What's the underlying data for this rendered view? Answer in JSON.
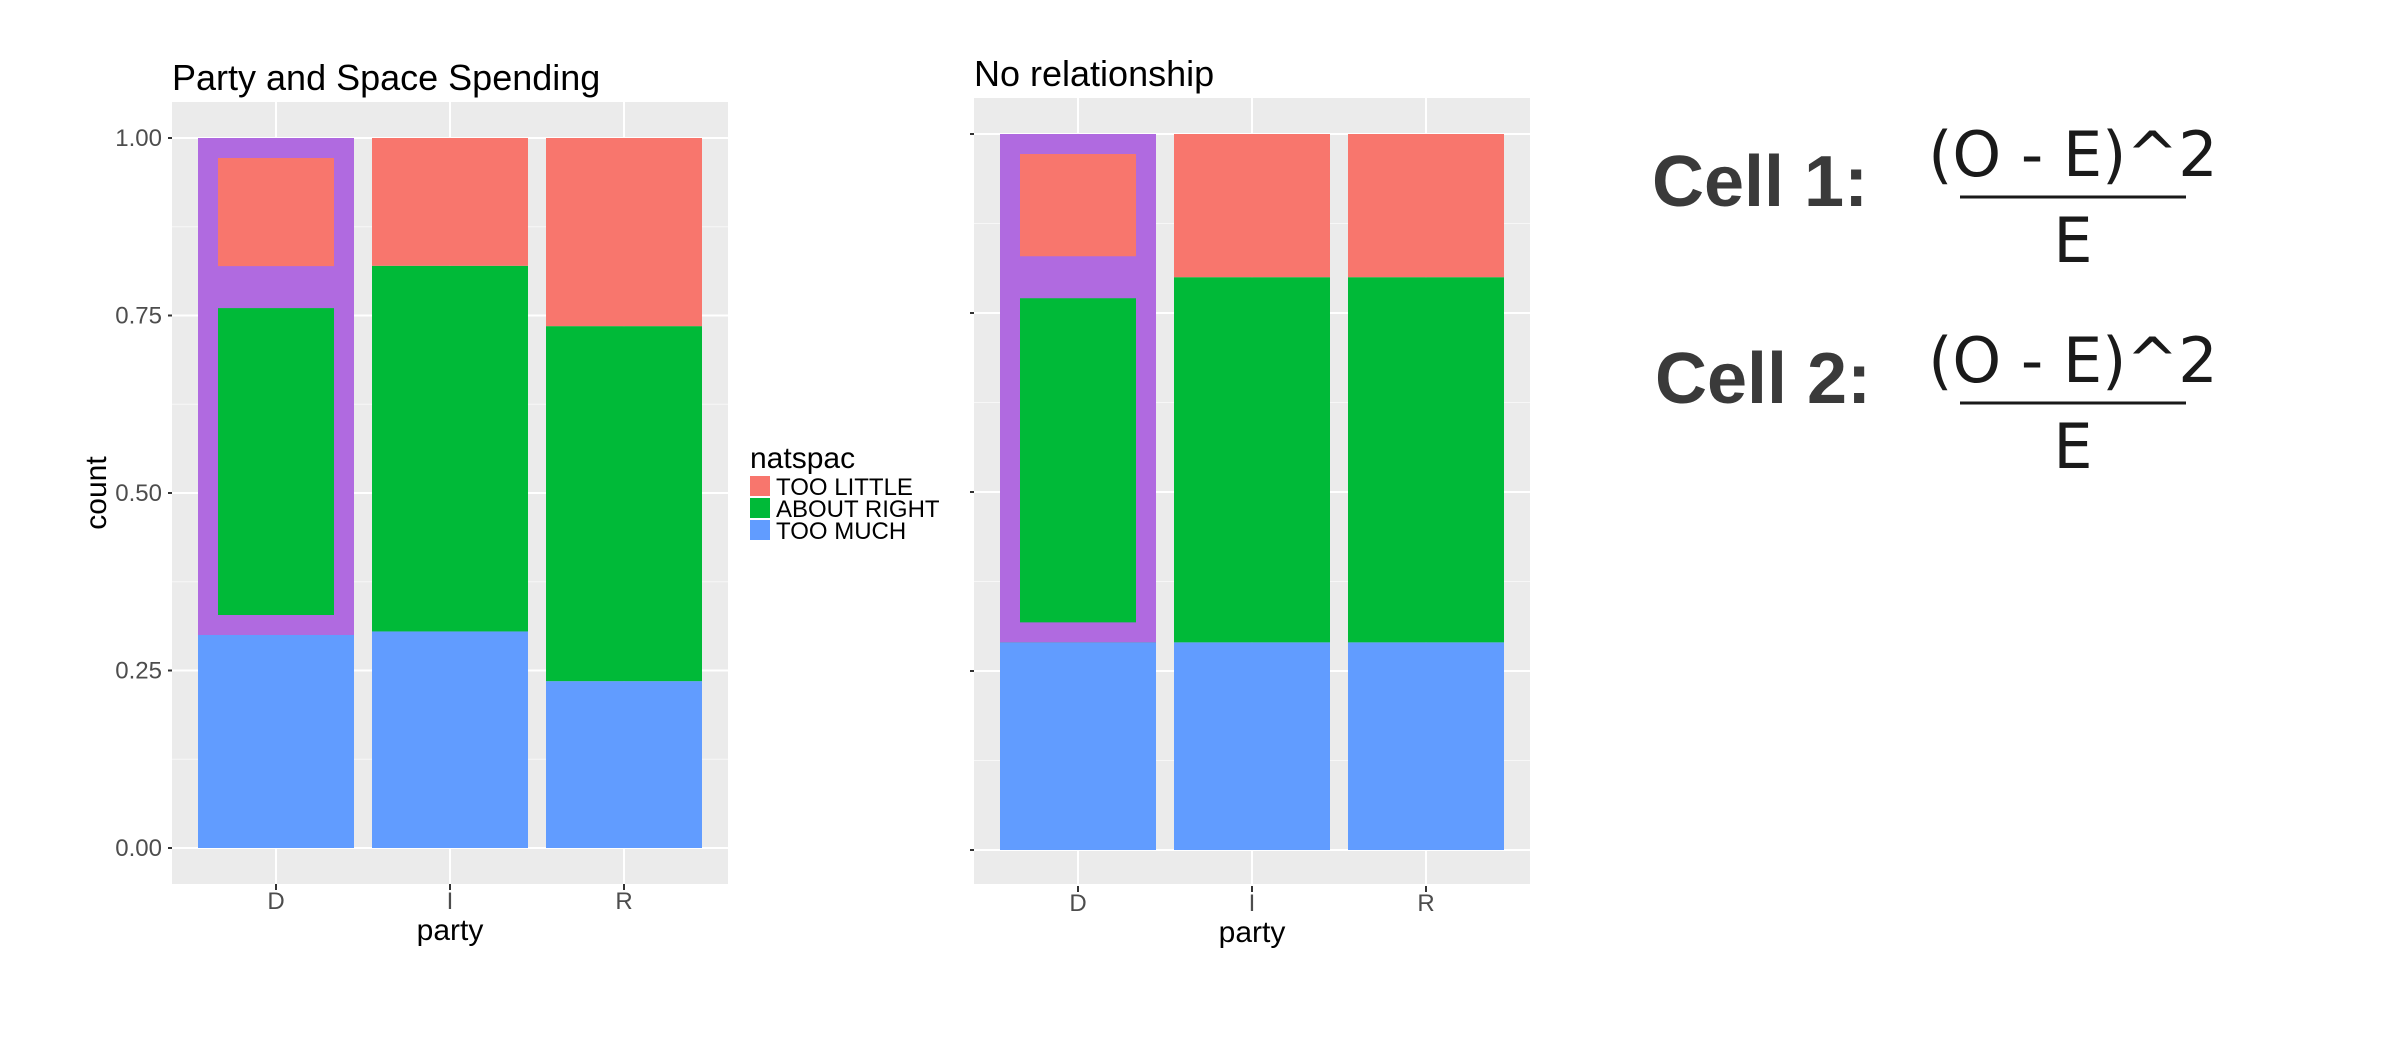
{
  "colors": {
    "too_little": "#F8766D",
    "about_right": "#00BA38",
    "too_much": "#619CFF",
    "highlight": "#B06AE0",
    "panel": "#EBEBEB",
    "grid": "#FFFFFF"
  },
  "legend": {
    "title": "natspac",
    "items": [
      "TOO LITTLE",
      "ABOUT RIGHT",
      "TOO MUCH"
    ]
  },
  "chart_data": [
    {
      "type": "bar",
      "stacked": true,
      "title": "Party and Space Spending",
      "xlabel": "party",
      "ylabel": "count",
      "ylim": [
        0,
        1
      ],
      "yticks": [
        "0.00",
        "0.25",
        "0.50",
        "0.75",
        "1.00"
      ],
      "categories": [
        "D",
        "I",
        "R"
      ],
      "series": [
        {
          "name": "TOO MUCH",
          "values": [
            0.3,
            0.305,
            0.235
          ]
        },
        {
          "name": "ABOUT RIGHT",
          "values": [
            0.49,
            0.515,
            0.5
          ]
        },
        {
          "name": "TOO LITTLE",
          "values": [
            0.21,
            0.18,
            0.265
          ]
        }
      ],
      "highlight_category": "D"
    },
    {
      "type": "bar",
      "stacked": true,
      "title": "No relationship",
      "xlabel": "party",
      "ylabel": "",
      "ylim": [
        0,
        1
      ],
      "yticks": [
        "",
        "",
        "",
        "",
        ""
      ],
      "categories": [
        "D",
        "I",
        "R"
      ],
      "series": [
        {
          "name": "TOO MUCH",
          "values": [
            0.29,
            0.29,
            0.29
          ]
        },
        {
          "name": "ABOUT RIGHT",
          "values": [
            0.51,
            0.51,
            0.51
          ]
        },
        {
          "name": "TOO LITTLE",
          "values": [
            0.2,
            0.2,
            0.2
          ]
        }
      ],
      "highlight_category": "D"
    }
  ],
  "formulas": [
    {
      "label": "Cell 1:",
      "numerator": "(O - E)^2",
      "denominator": "E"
    },
    {
      "label": "Cell 2:",
      "numerator": "(O - E)^2",
      "denominator": "E"
    }
  ]
}
